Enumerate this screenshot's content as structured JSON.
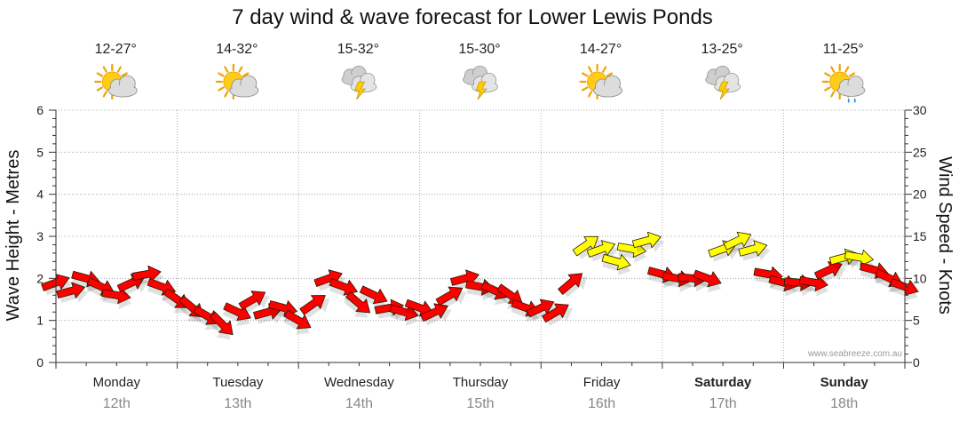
{
  "chart_data": {
    "type": "line",
    "title": "7 day wind & wave forecast for Lower Lewis Ponds",
    "ylabel_left": "Wave Height - Metres",
    "ylabel_right": "Wind Speed - Knots",
    "ylim_left": [
      0,
      6
    ],
    "ylim_right": [
      0,
      30
    ],
    "yticks_left": [
      "0",
      "1",
      "2",
      "3",
      "4",
      "5",
      "6"
    ],
    "yticks_right": [
      "0",
      "5",
      "10",
      "15",
      "20",
      "25",
      "30"
    ],
    "credit": "www.seabreeze.com.au",
    "days": [
      {
        "name": "Monday",
        "date": "12th",
        "temp": "12-27°",
        "icon": "partly-sunny-icon",
        "bold": false
      },
      {
        "name": "Tuesday",
        "date": "13th",
        "temp": "14-32°",
        "icon": "partly-sunny-icon",
        "bold": false
      },
      {
        "name": "Wednesday",
        "date": "14th",
        "temp": "15-32°",
        "icon": "thunderstorm-icon",
        "bold": false
      },
      {
        "name": "Thursday",
        "date": "15th",
        "temp": "15-30°",
        "icon": "thunderstorm-icon",
        "bold": false
      },
      {
        "name": "Friday",
        "date": "16th",
        "temp": "14-27°",
        "icon": "partly-sunny-icon",
        "bold": false
      },
      {
        "name": "Saturday",
        "date": "17th",
        "temp": "13-25°",
        "icon": "thunderstorm-icon",
        "bold": true
      },
      {
        "name": "Sunday",
        "date": "18th",
        "temp": "11-25°",
        "icon": "sun-shower-icon",
        "bold": true
      }
    ],
    "wind_series": {
      "name": "Wind Speed (knots)",
      "color_threshold_knots": 12,
      "colors": {
        "low": "#ff0000",
        "high": "#ffff00"
      },
      "x_hours": [
        0,
        3,
        6,
        9,
        12,
        15,
        18,
        21,
        24,
        27,
        30,
        33,
        36,
        39,
        42,
        45,
        48,
        51,
        54,
        57,
        60,
        63,
        66,
        69,
        72,
        75,
        78,
        81,
        84,
        87,
        90,
        93,
        96,
        99,
        102,
        105,
        108,
        111,
        114,
        117,
        120,
        123,
        126,
        129,
        132,
        135,
        138,
        141,
        144,
        147,
        150,
        153,
        156,
        159,
        162,
        165,
        168
      ],
      "values": [
        9.5,
        8.5,
        10,
        9,
        8,
        9.5,
        10.5,
        9,
        7.5,
        6.5,
        5.5,
        4.5,
        6,
        7.5,
        6,
        6.5,
        5,
        7,
        10,
        9,
        7,
        8,
        6.5,
        6,
        6.5,
        6,
        8,
        10,
        9,
        8.5,
        8,
        6.5,
        6.5,
        6,
        9.5,
        14,
        13.5,
        12,
        13.5,
        14.5,
        10.5,
        10,
        10,
        10,
        13.5,
        14.5,
        13.5,
        10.5,
        9.5,
        9.5,
        9.5,
        11,
        12.5,
        12.5,
        11,
        10,
        9
      ]
    }
  }
}
